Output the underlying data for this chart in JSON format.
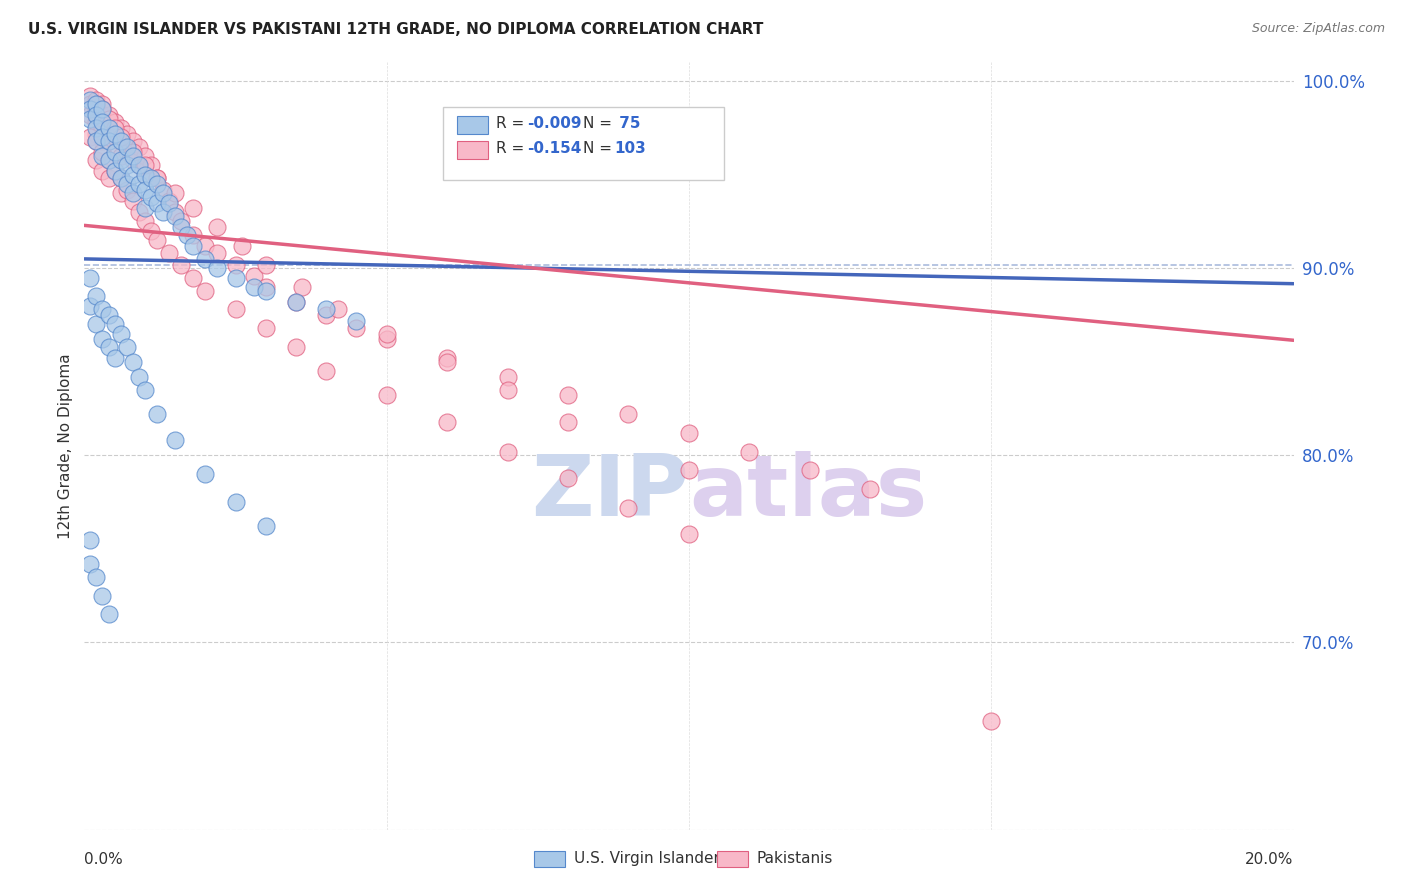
{
  "title": "U.S. VIRGIN ISLANDER VS PAKISTANI 12TH GRADE, NO DIPLOMA CORRELATION CHART",
  "source": "Source: ZipAtlas.com",
  "ylabel": "12th Grade, No Diploma",
  "legend_label1": "U.S. Virgin Islanders",
  "legend_label2": "Pakistanis",
  "r1": "-0.009",
  "n1": "75",
  "r2": "-0.154",
  "n2": "103",
  "xmin": 0.0,
  "xmax": 0.2,
  "ymin": 0.6,
  "ymax": 1.01,
  "ytick_vals": [
    0.7,
    0.8,
    0.9,
    1.0
  ],
  "ytick_labels": [
    "70.0%",
    "80.0%",
    "90.0%",
    "100.0%"
  ],
  "color_blue_fill": "#a8c8e8",
  "color_blue_edge": "#5588cc",
  "color_pink_fill": "#f8b8c8",
  "color_pink_edge": "#e06080",
  "color_blue_line": "#4466bb",
  "color_pink_line": "#e06080",
  "color_dashed": "#aabbdd",
  "watermark_zip": "#c8d8f0",
  "watermark_atlas": "#d8c8e8",
  "blue_x": [
    0.001,
    0.001,
    0.001,
    0.002,
    0.002,
    0.002,
    0.002,
    0.003,
    0.003,
    0.003,
    0.003,
    0.004,
    0.004,
    0.004,
    0.005,
    0.005,
    0.005,
    0.006,
    0.006,
    0.006,
    0.007,
    0.007,
    0.007,
    0.008,
    0.008,
    0.008,
    0.009,
    0.009,
    0.01,
    0.01,
    0.01,
    0.011,
    0.011,
    0.012,
    0.012,
    0.013,
    0.013,
    0.014,
    0.015,
    0.016,
    0.017,
    0.018,
    0.02,
    0.022,
    0.025,
    0.028,
    0.03,
    0.035,
    0.04,
    0.045,
    0.001,
    0.001,
    0.002,
    0.002,
    0.003,
    0.003,
    0.004,
    0.004,
    0.005,
    0.005,
    0.006,
    0.007,
    0.008,
    0.009,
    0.01,
    0.012,
    0.015,
    0.02,
    0.025,
    0.03,
    0.001,
    0.001,
    0.002,
    0.003,
    0.004
  ],
  "blue_y": [
    0.99,
    0.985,
    0.98,
    0.988,
    0.982,
    0.975,
    0.968,
    0.985,
    0.978,
    0.97,
    0.96,
    0.975,
    0.968,
    0.958,
    0.972,
    0.962,
    0.952,
    0.968,
    0.958,
    0.948,
    0.965,
    0.955,
    0.945,
    0.96,
    0.95,
    0.94,
    0.955,
    0.945,
    0.95,
    0.942,
    0.932,
    0.948,
    0.938,
    0.945,
    0.935,
    0.94,
    0.93,
    0.935,
    0.928,
    0.922,
    0.918,
    0.912,
    0.905,
    0.9,
    0.895,
    0.89,
    0.888,
    0.882,
    0.878,
    0.872,
    0.895,
    0.88,
    0.885,
    0.87,
    0.878,
    0.862,
    0.875,
    0.858,
    0.87,
    0.852,
    0.865,
    0.858,
    0.85,
    0.842,
    0.835,
    0.822,
    0.808,
    0.79,
    0.775,
    0.762,
    0.755,
    0.742,
    0.735,
    0.725,
    0.715
  ],
  "pink_x": [
    0.001,
    0.001,
    0.001,
    0.002,
    0.002,
    0.002,
    0.002,
    0.003,
    0.003,
    0.003,
    0.003,
    0.004,
    0.004,
    0.004,
    0.005,
    0.005,
    0.005,
    0.006,
    0.006,
    0.006,
    0.007,
    0.007,
    0.008,
    0.008,
    0.009,
    0.009,
    0.01,
    0.01,
    0.011,
    0.012,
    0.013,
    0.014,
    0.015,
    0.016,
    0.018,
    0.02,
    0.022,
    0.025,
    0.028,
    0.03,
    0.035,
    0.04,
    0.045,
    0.05,
    0.06,
    0.07,
    0.08,
    0.09,
    0.1,
    0.11,
    0.12,
    0.13,
    0.001,
    0.002,
    0.002,
    0.003,
    0.003,
    0.004,
    0.004,
    0.005,
    0.006,
    0.006,
    0.007,
    0.008,
    0.009,
    0.01,
    0.011,
    0.012,
    0.014,
    0.016,
    0.018,
    0.02,
    0.025,
    0.03,
    0.035,
    0.04,
    0.05,
    0.06,
    0.07,
    0.08,
    0.09,
    0.1,
    0.002,
    0.003,
    0.004,
    0.005,
    0.006,
    0.008,
    0.01,
    0.012,
    0.015,
    0.018,
    0.022,
    0.026,
    0.03,
    0.036,
    0.042,
    0.05,
    0.06,
    0.07,
    0.08,
    0.1,
    0.15
  ],
  "pink_y": [
    0.992,
    0.988,
    0.982,
    0.99,
    0.985,
    0.978,
    0.972,
    0.988,
    0.982,
    0.975,
    0.968,
    0.982,
    0.975,
    0.968,
    0.978,
    0.97,
    0.962,
    0.975,
    0.968,
    0.96,
    0.972,
    0.962,
    0.968,
    0.958,
    0.965,
    0.955,
    0.96,
    0.95,
    0.955,
    0.948,
    0.942,
    0.936,
    0.93,
    0.925,
    0.918,
    0.912,
    0.908,
    0.902,
    0.896,
    0.89,
    0.882,
    0.875,
    0.868,
    0.862,
    0.852,
    0.842,
    0.832,
    0.822,
    0.812,
    0.802,
    0.792,
    0.782,
    0.97,
    0.968,
    0.958,
    0.962,
    0.952,
    0.958,
    0.948,
    0.952,
    0.948,
    0.94,
    0.942,
    0.936,
    0.93,
    0.925,
    0.92,
    0.915,
    0.908,
    0.902,
    0.895,
    0.888,
    0.878,
    0.868,
    0.858,
    0.845,
    0.832,
    0.818,
    0.802,
    0.788,
    0.772,
    0.758,
    0.988,
    0.985,
    0.98,
    0.975,
    0.97,
    0.962,
    0.955,
    0.948,
    0.94,
    0.932,
    0.922,
    0.912,
    0.902,
    0.89,
    0.878,
    0.865,
    0.85,
    0.835,
    0.818,
    0.792,
    0.658
  ]
}
